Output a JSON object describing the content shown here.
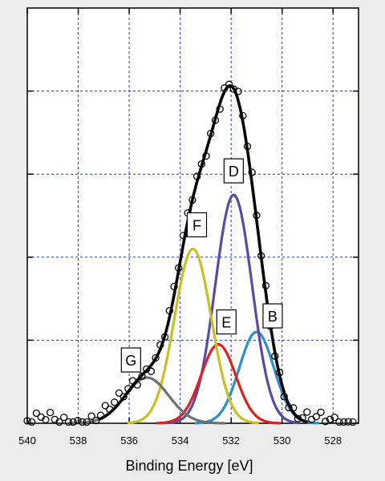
{
  "chart_data": {
    "type": "line",
    "xlabel": "Binding Energy [eV]",
    "ylabel": "",
    "title": "",
    "x_reversed": true,
    "xlim": [
      540,
      527
    ],
    "ylim": [
      0,
      1
    ],
    "x_ticks": [
      540,
      538,
      536,
      534,
      532,
      530,
      528
    ],
    "y_ticks": [
      0,
      0.2,
      0.4,
      0.6,
      0.8
    ],
    "grid": true,
    "components": [
      {
        "label": "B",
        "color": "#2a8fcf",
        "center": 531.0,
        "amplitude": 0.22,
        "width": 0.68
      },
      {
        "label": "D",
        "color": "#5a4aa8",
        "center": 531.9,
        "amplitude": 0.55,
        "width": 0.72
      },
      {
        "label": "E",
        "color": "#e02020",
        "center": 532.5,
        "amplitude": 0.19,
        "width": 0.68
      },
      {
        "label": "F",
        "color": "#c8c020",
        "center": 533.5,
        "amplitude": 0.42,
        "width": 0.72
      },
      {
        "label": "G",
        "color": "#707070",
        "center": 535.3,
        "amplitude": 0.11,
        "width": 0.85
      }
    ],
    "envelope": {
      "color": "#000000"
    },
    "data_points": {
      "marker": "open-circle",
      "x_start": 540,
      "x_end": 527.2,
      "step": 0.18
    }
  }
}
